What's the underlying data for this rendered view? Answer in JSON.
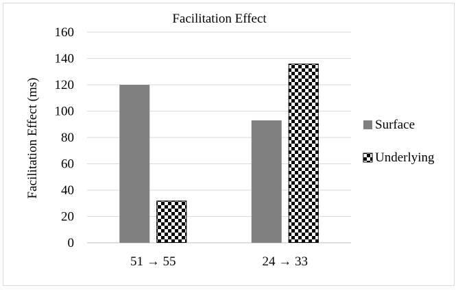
{
  "chart_data": {
    "type": "bar",
    "title": "Facilitation Effect",
    "xlabel": "",
    "ylabel": "Facilitation Effect (ms)",
    "categories": [
      "51 → 55",
      "24 → 33"
    ],
    "series": [
      {
        "name": "Surface",
        "values": [
          120,
          93
        ],
        "pattern": "solid",
        "color": "#808080"
      },
      {
        "name": "Underlying",
        "values": [
          32,
          136
        ],
        "pattern": "checkerboard",
        "color": "#000000"
      }
    ],
    "ylim": [
      0,
      160
    ],
    "yticks": [
      0,
      20,
      40,
      60,
      80,
      100,
      120,
      140,
      160
    ],
    "grid": true,
    "legend_position": "right"
  }
}
